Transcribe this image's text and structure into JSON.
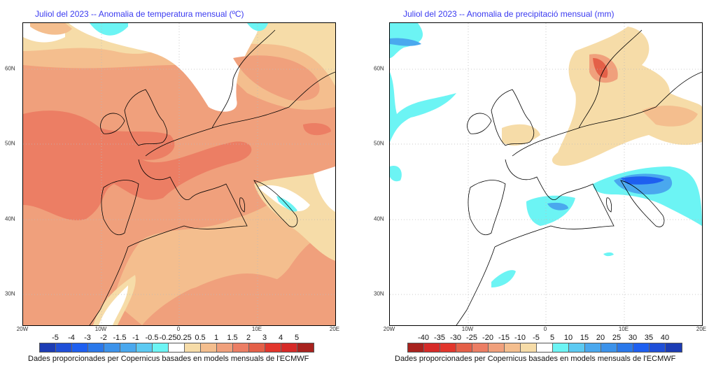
{
  "maps": [
    {
      "id": "temp",
      "title": "Juliol del 2023 -- Anomalia de temperatura mensual (ºC)",
      "lat_labels": [
        "60N",
        "50N",
        "40N",
        "30N"
      ],
      "lon_labels": [
        "20W",
        "10W",
        "0",
        "10E",
        "20E"
      ],
      "colorbar": {
        "labels": [
          "-5",
          "-4",
          "-3",
          "-2",
          "-1.5",
          "-1",
          "-0.5",
          "-0.25",
          "0.25",
          "0.5",
          "1",
          "1.5",
          "2",
          "3",
          "4",
          "5"
        ],
        "colors": [
          "#1c3cb4",
          "#1f4fd8",
          "#1e5ff0",
          "#2a78ea",
          "#3c92ea",
          "#4aa8ee",
          "#5ccaf2",
          "#6cf4f4",
          "#ffffff",
          "#f6dca8",
          "#f4be8e",
          "#f0a07c",
          "#ec7e64",
          "#e46048",
          "#e2362c",
          "#d62a28",
          "#a8221e"
        ]
      },
      "credit": "Dades proporcionades per Copernicus basades en models mensuals de l'ECMWF"
    },
    {
      "id": "precip",
      "title": "Juliol del 2023 -- Anomalia de precipitació mensual (mm)",
      "lat_labels": [
        "60N",
        "50N",
        "40N",
        "30N"
      ],
      "lon_labels": [
        "20W",
        "10W",
        "0",
        "10E",
        "20E"
      ],
      "colorbar": {
        "labels": [
          "-40",
          "-35",
          "-30",
          "-25",
          "-20",
          "-15",
          "-10",
          "-5",
          "5",
          "10",
          "15",
          "20",
          "25",
          "30",
          "35",
          "40"
        ],
        "colors": [
          "#a8221e",
          "#d62a28",
          "#e2362c",
          "#e46048",
          "#ec7e64",
          "#f0a07c",
          "#f4be8e",
          "#f6dca8",
          "#ffffff",
          "#6cf4f4",
          "#5ccaf2",
          "#4aa8ee",
          "#3c92ea",
          "#2a78ea",
          "#1e5ff0",
          "#1f4fd8",
          "#1c3cb4"
        ]
      },
      "credit": "Dades proporcionades per Copernicus basades en models mensuals de l'ECMWF"
    }
  ]
}
